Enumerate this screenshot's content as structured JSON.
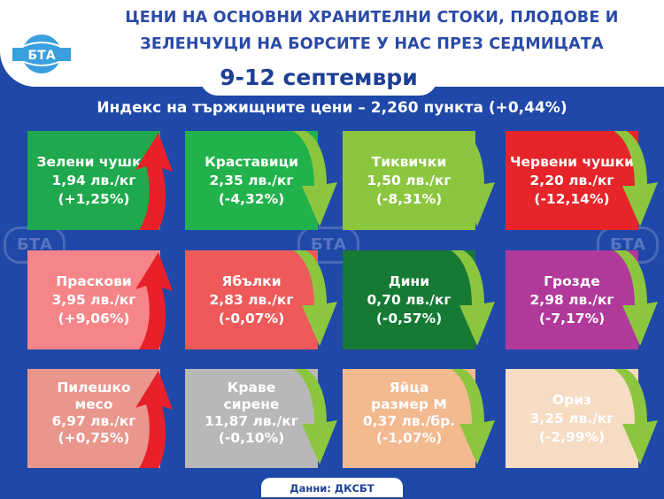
{
  "header": {
    "title_line1": "ЦЕНИ НА ОСНОВНИ ХРАНИТЕЛНИ СТОКИ, ПЛОДОВЕ И",
    "title_line2": "ЗЕЛЕНЧУЦИ НА БОРСИТЕ У НАС ПРЕЗ СЕДМИЦАТА",
    "date": "9-12 септември",
    "logo_text": "БТА"
  },
  "index_text": "Индекс на тържищните цени – 2,260 пункта (+0,44%)",
  "watermark_text": "БТА",
  "items": [
    {
      "name": "Зелени чушки",
      "price": "1,94 лв./кг",
      "change": "(+1,25%)",
      "direction": "up",
      "color": "#1fa84d"
    },
    {
      "name": "Краставици",
      "price": "2,35 лв./кг",
      "change": "(-4,32%)",
      "direction": "down",
      "color": "#22b24b"
    },
    {
      "name": "Тиквички",
      "price": "1,50 лв./кг",
      "change": "(-8,31%)",
      "direction": "down",
      "color": "#8cc63f"
    },
    {
      "name": "Червени чушки",
      "price": "2,20 лв./кг",
      "change": "(-12,14%)",
      "direction": "down",
      "color": "#e5252a"
    },
    {
      "name": "Праскови",
      "price": "3,95 лв./кг",
      "change": "(+9,06%)",
      "direction": "up",
      "color": "#f58588"
    },
    {
      "name": "Ябълки",
      "price": "2,83 лв./кг",
      "change": "(-0,07%)",
      "direction": "down",
      "color": "#ee5a5a"
    },
    {
      "name": "Дини",
      "price": "0,70 лв./кг",
      "change": "(-0,57%)",
      "direction": "down",
      "color": "#167a34"
    },
    {
      "name": "Грозде",
      "price": "2,98 лв./кг",
      "change": "(-7,17%)",
      "direction": "down",
      "color": "#b0399a"
    },
    {
      "name_lines": [
        "Пилешко",
        "месо"
      ],
      "price": "6,97 лв./кг",
      "change": "(+0,75%)",
      "direction": "up",
      "color": "#e9968d"
    },
    {
      "name_lines": [
        "Краве",
        "сирене"
      ],
      "price": "11,87 лв./кг",
      "change": "(-0,10%)",
      "direction": "down",
      "color": "#b8b8b8"
    },
    {
      "name_lines": [
        "Яйца",
        "размер М"
      ],
      "price": "0,37 лв./бр.",
      "change": "(-1,07%)",
      "direction": "down",
      "color": "#f3b98f"
    },
    {
      "name": "Ориз",
      "price": "3,25 лв./кг",
      "change": "(-2,99%)",
      "direction": "down",
      "color": "#f6dcc3"
    }
  ],
  "colors": {
    "background": "#1f48a8",
    "title": "#2a4aa6",
    "arrow_up": "#e8202a",
    "arrow_down": "#8cc63f"
  },
  "icons": {
    "arrow_up": "arrow-up-icon",
    "arrow_down": "arrow-down-icon",
    "logo": "bta-globe-logo"
  },
  "footer": {
    "source": "Данни: ДКСБТ"
  }
}
